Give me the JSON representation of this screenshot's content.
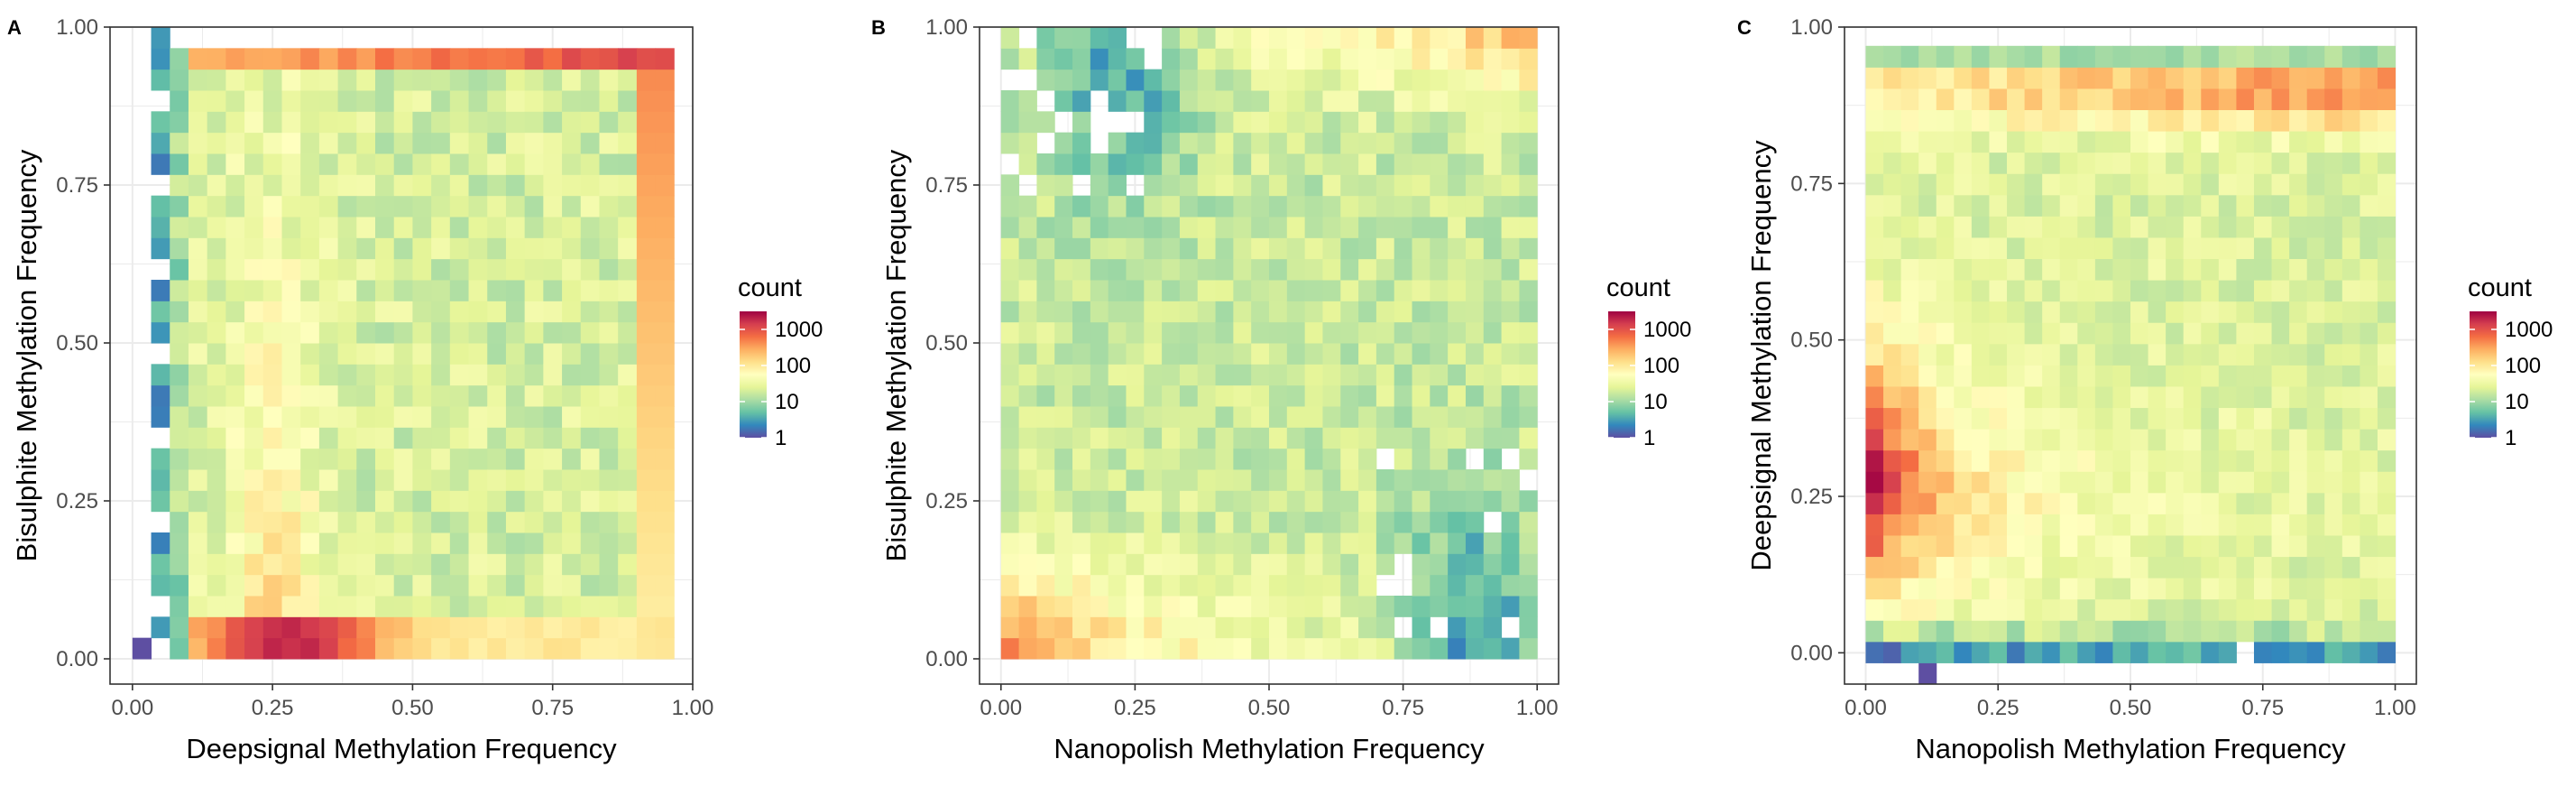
{
  "chart_data": [
    {
      "type": "heatmap",
      "panel_label": "A",
      "xlabel": "Deepsignal Methylation Frequency",
      "ylabel": "Bisulphite Methylation Frequency",
      "xlim": [
        -0.04,
        1.0
      ],
      "ylim": [
        -0.04,
        1.0
      ],
      "x_ticks": [
        0.0,
        0.25,
        0.5,
        0.75,
        1.0
      ],
      "y_ticks": [
        0.0,
        0.25,
        0.5,
        0.75,
        1.0
      ],
      "x_tick_labels": [
        "0.00",
        "0.25",
        "0.50",
        "0.75",
        "1.00"
      ],
      "y_tick_labels": [
        "0.00",
        "0.25",
        "0.50",
        "0.75",
        "1.00"
      ],
      "bins": 30,
      "x_range": [
        0.0,
        1.0
      ],
      "y_range": [
        0.0,
        1.0
      ],
      "grid": true,
      "pattern": "A",
      "legend": {
        "title": "count",
        "labels": [
          "1000",
          "100",
          "10",
          "1"
        ],
        "values": [
          1000,
          100,
          10,
          1
        ],
        "scale": "log10",
        "placement": "right"
      }
    },
    {
      "type": "heatmap",
      "panel_label": "B",
      "xlabel": "Nanopolish Methylation Frequency",
      "ylabel": "Bisulphite Methylation Frequency",
      "xlim": [
        -0.04,
        1.04
      ],
      "ylim": [
        -0.04,
        1.0
      ],
      "x_ticks": [
        0.0,
        0.25,
        0.5,
        0.75,
        1.0
      ],
      "y_ticks": [
        0.0,
        0.25,
        0.5,
        0.75,
        1.0
      ],
      "x_tick_labels": [
        "0.00",
        "0.25",
        "0.50",
        "0.75",
        "1.00"
      ],
      "y_tick_labels": [
        "0.00",
        "0.25",
        "0.50",
        "0.75",
        "1.00"
      ],
      "bins": 30,
      "x_range": [
        0.0,
        1.0
      ],
      "y_range": [
        0.0,
        1.0
      ],
      "grid": true,
      "pattern": "B",
      "legend": {
        "title": "count",
        "labels": [
          "1000",
          "100",
          "10",
          "1"
        ],
        "values": [
          1000,
          100,
          10,
          1
        ],
        "scale": "log10",
        "placement": "right"
      }
    },
    {
      "type": "heatmap",
      "panel_label": "C",
      "xlabel": "Nanopolish Methylation Frequency",
      "ylabel": "Deepsignal Methylation Frequency",
      "xlim": [
        -0.04,
        1.04
      ],
      "ylim": [
        -0.05,
        1.0
      ],
      "x_ticks": [
        0.0,
        0.25,
        0.5,
        0.75,
        1.0
      ],
      "y_ticks": [
        0.0,
        0.25,
        0.5,
        0.75,
        1.0
      ],
      "x_tick_labels": [
        "0.00",
        "0.25",
        "0.50",
        "0.75",
        "1.00"
      ],
      "y_tick_labels": [
        "0.00",
        "0.25",
        "0.50",
        "0.75",
        "1.00"
      ],
      "bins": 30,
      "x_range": [
        0.0,
        1.0
      ],
      "y_range": [
        -0.05,
        0.97
      ],
      "grid": true,
      "pattern": "C",
      "legend": {
        "title": "count",
        "labels": [
          "1000",
          "100",
          "10",
          "1"
        ],
        "values": [
          1000,
          100,
          10,
          1
        ],
        "scale": "log10",
        "placement": "right"
      }
    }
  ],
  "colors": {
    "palette": [
      "#5E4FA2",
      "#3288BD",
      "#66C2A5",
      "#ABDDA4",
      "#E6F598",
      "#FFFFBF",
      "#FEE08B",
      "#FDAE61",
      "#F46D43",
      "#D53E4F",
      "#9E0142"
    ],
    "grid": "#EBEBEB",
    "panel_border": "#333333",
    "axis_text": "#4D4D4D",
    "title_text": "#000000"
  }
}
